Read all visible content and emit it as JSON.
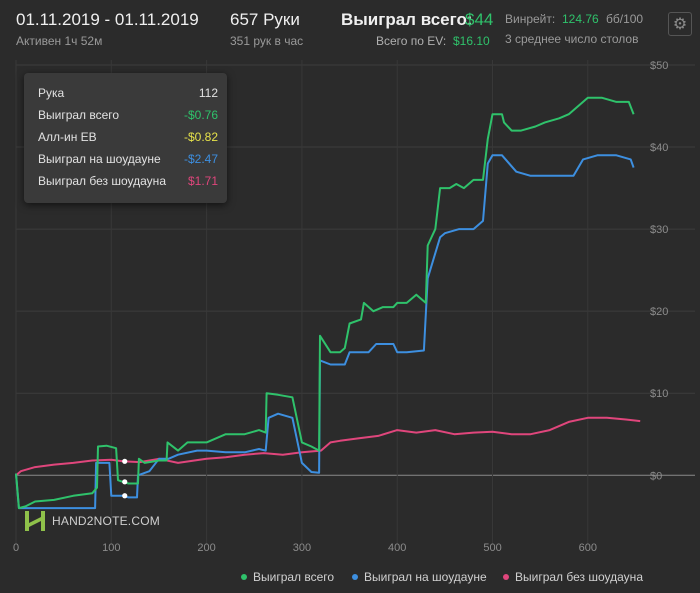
{
  "header": {
    "date_range": "01.11.2019 - 01.11.2019",
    "active_time": "Активен 1ч 52м",
    "hands": "657 Руки",
    "hands_per_hour": "351 рук в час",
    "won_total_label": "Выиграл всего:",
    "won_total_value": "$44",
    "ev_label": "Всего по EV:",
    "ev_value": "$16.10",
    "winrate_label": "Винрейт:",
    "winrate_value": "124.76",
    "winrate_unit": "бб/100",
    "tables": "3 среднее число столов",
    "settings_icon": "gear-icon"
  },
  "tooltip": {
    "hand_label": "Рука",
    "hand_value": "112",
    "rows": [
      {
        "label": "Выиграл всего",
        "value": "-$0.76",
        "color": "#2fc26b"
      },
      {
        "label": "Алл-ин ЕВ",
        "value": "-$0.82",
        "color": "#e6e24a"
      },
      {
        "label": "Выиграл на шоудауне",
        "value": "-$2.47",
        "color": "#3d8fe0"
      },
      {
        "label": "Выиграл без шоудауна",
        "value": "$1.71",
        "color": "#e0467c"
      }
    ]
  },
  "watermark": "HAND2NOTE.COM",
  "chart_data": {
    "type": "line",
    "x_ticks": [
      "0",
      "100",
      "200",
      "300",
      "400",
      "500",
      "600"
    ],
    "y_ticks": [
      "$0",
      "$10",
      "$20",
      "$30",
      "$40",
      "$50"
    ],
    "xlim": [
      0,
      660
    ],
    "ylim": [
      -8.5,
      50
    ],
    "grid": true,
    "hover_x": 112,
    "series": [
      {
        "name": "Выиграл всего",
        "color": "#2fc26b",
        "points": [
          [
            0,
            0.2
          ],
          [
            3,
            -4
          ],
          [
            10,
            -3.8
          ],
          [
            20,
            -3.2
          ],
          [
            40,
            -3
          ],
          [
            60,
            -2.5
          ],
          [
            80,
            -2.2
          ],
          [
            85,
            -1.5
          ],
          [
            86,
            3.5
          ],
          [
            95,
            3.6
          ],
          [
            105,
            3.3
          ],
          [
            107,
            -0.6
          ],
          [
            112,
            -0.8
          ],
          [
            118,
            -1
          ],
          [
            128,
            -1
          ],
          [
            129,
            2
          ],
          [
            135,
            1.5
          ],
          [
            150,
            1.8
          ],
          [
            158,
            1.8
          ],
          [
            159,
            4
          ],
          [
            170,
            3
          ],
          [
            180,
            4
          ],
          [
            200,
            4
          ],
          [
            220,
            5
          ],
          [
            240,
            5
          ],
          [
            255,
            5.5
          ],
          [
            262,
            5.2
          ],
          [
            263,
            10
          ],
          [
            275,
            9.8
          ],
          [
            290,
            9.5
          ],
          [
            300,
            4
          ],
          [
            310,
            3.5
          ],
          [
            318,
            3
          ],
          [
            319,
            17
          ],
          [
            330,
            15
          ],
          [
            340,
            15
          ],
          [
            345,
            15.5
          ],
          [
            350,
            18.5
          ],
          [
            362,
            19
          ],
          [
            365,
            21
          ],
          [
            375,
            20
          ],
          [
            385,
            20.5
          ],
          [
            396,
            20.5
          ],
          [
            400,
            21
          ],
          [
            410,
            21
          ],
          [
            420,
            22
          ],
          [
            430,
            21
          ],
          [
            432,
            28
          ],
          [
            440,
            30
          ],
          [
            445,
            35
          ],
          [
            455,
            35
          ],
          [
            462,
            35.5
          ],
          [
            470,
            35
          ],
          [
            480,
            36
          ],
          [
            490,
            36
          ],
          [
            495,
            41
          ],
          [
            500,
            44
          ],
          [
            505,
            44
          ],
          [
            510,
            44
          ],
          [
            512,
            43
          ],
          [
            520,
            42
          ],
          [
            530,
            42
          ],
          [
            545,
            42.5
          ],
          [
            555,
            43
          ],
          [
            570,
            43.5
          ],
          [
            580,
            44
          ],
          [
            590,
            45
          ],
          [
            600,
            46
          ],
          [
            615,
            46
          ],
          [
            630,
            45.5
          ],
          [
            643,
            45.5
          ],
          [
            648,
            44
          ]
        ]
      },
      {
        "name": "Выиграл на шоудауне",
        "color": "#3d8fe0",
        "points": [
          [
            0,
            0.2
          ],
          [
            3,
            -4
          ],
          [
            20,
            -4
          ],
          [
            40,
            -4
          ],
          [
            60,
            -4
          ],
          [
            83,
            -4
          ],
          [
            84,
            1.5
          ],
          [
            98,
            1.5
          ],
          [
            100,
            -2.5
          ],
          [
            112,
            -2.5
          ],
          [
            118,
            -2.7
          ],
          [
            127,
            -2.7
          ],
          [
            128,
            0
          ],
          [
            140,
            0.5
          ],
          [
            150,
            2
          ],
          [
            160,
            2
          ],
          [
            170,
            2.5
          ],
          [
            190,
            3
          ],
          [
            200,
            3
          ],
          [
            220,
            2.8
          ],
          [
            240,
            2.8
          ],
          [
            255,
            3.2
          ],
          [
            262,
            3
          ],
          [
            265,
            7
          ],
          [
            275,
            7.5
          ],
          [
            290,
            7
          ],
          [
            300,
            1.5
          ],
          [
            310,
            0.4
          ],
          [
            318,
            0.3
          ],
          [
            319,
            14
          ],
          [
            330,
            13.5
          ],
          [
            345,
            13.5
          ],
          [
            350,
            15
          ],
          [
            370,
            15
          ],
          [
            378,
            16
          ],
          [
            396,
            16
          ],
          [
            400,
            15
          ],
          [
            410,
            15
          ],
          [
            428,
            15.2
          ],
          [
            432,
            24
          ],
          [
            445,
            29
          ],
          [
            450,
            29.5
          ],
          [
            465,
            30
          ],
          [
            480,
            30
          ],
          [
            490,
            31
          ],
          [
            495,
            38
          ],
          [
            500,
            39
          ],
          [
            510,
            39
          ],
          [
            525,
            37
          ],
          [
            540,
            36.5
          ],
          [
            560,
            36.5
          ],
          [
            585,
            36.5
          ],
          [
            595,
            38.5
          ],
          [
            610,
            39
          ],
          [
            630,
            39
          ],
          [
            645,
            38.5
          ],
          [
            648,
            37.5
          ]
        ]
      },
      {
        "name": "Выиграл без шоудауна",
        "color": "#e0467c",
        "points": [
          [
            0,
            0
          ],
          [
            5,
            0.5
          ],
          [
            20,
            1
          ],
          [
            40,
            1.3
          ],
          [
            60,
            1.5
          ],
          [
            80,
            1.8
          ],
          [
            100,
            1.9
          ],
          [
            112,
            1.7
          ],
          [
            130,
            1.6
          ],
          [
            150,
            2
          ],
          [
            170,
            1.5
          ],
          [
            200,
            2
          ],
          [
            220,
            2.2
          ],
          [
            240,
            2.5
          ],
          [
            260,
            2.7
          ],
          [
            280,
            2.5
          ],
          [
            300,
            2.8
          ],
          [
            320,
            3
          ],
          [
            330,
            4
          ],
          [
            340,
            4.2
          ],
          [
            360,
            4.5
          ],
          [
            380,
            4.8
          ],
          [
            400,
            5.5
          ],
          [
            420,
            5.2
          ],
          [
            440,
            5.5
          ],
          [
            460,
            5
          ],
          [
            480,
            5.2
          ],
          [
            500,
            5.3
          ],
          [
            520,
            5
          ],
          [
            540,
            5
          ],
          [
            560,
            5.5
          ],
          [
            580,
            6.5
          ],
          [
            600,
            7
          ],
          [
            620,
            7
          ],
          [
            640,
            6.8
          ],
          [
            655,
            6.6
          ]
        ]
      }
    ]
  },
  "legend": [
    {
      "label": "Выиграл всего",
      "color": "#2fc26b"
    },
    {
      "label": "Выиграл на шоудауне",
      "color": "#3d8fe0"
    },
    {
      "label": "Выиграл без шоудауна",
      "color": "#e0467c"
    }
  ]
}
